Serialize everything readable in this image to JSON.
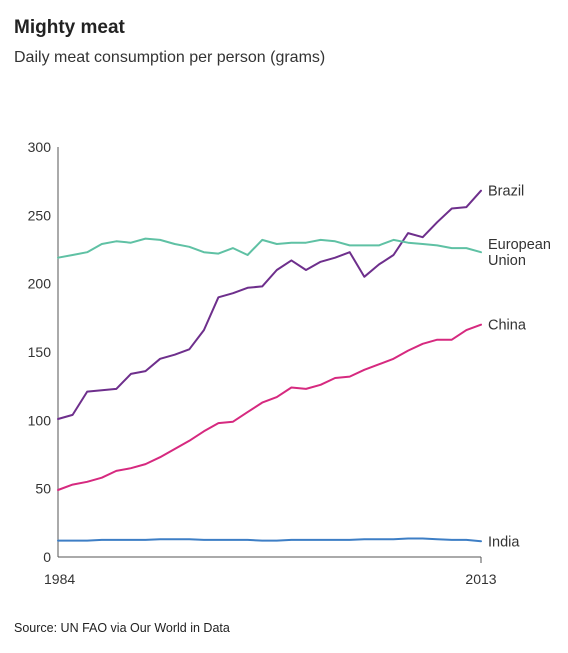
{
  "chart_data": {
    "type": "line",
    "title": "Mighty meat",
    "subtitle": "Daily meat consumption per person (grams)",
    "source": "Source: UN FAO via Our World in Data",
    "x": [
      1984,
      1985,
      1986,
      1987,
      1988,
      1989,
      1990,
      1991,
      1992,
      1993,
      1994,
      1995,
      1996,
      1997,
      1998,
      1999,
      2000,
      2001,
      2002,
      2003,
      2004,
      2005,
      2006,
      2007,
      2008,
      2009,
      2010,
      2011,
      2012,
      2013
    ],
    "x_tick_labels": [
      "1984",
      "2013"
    ],
    "y_ticks": [
      0,
      50,
      100,
      150,
      200,
      250,
      300
    ],
    "y_tick_labels": [
      "0",
      "50",
      "100",
      "150",
      "200",
      "250",
      "300"
    ],
    "ylim": [
      0,
      300
    ],
    "grid": false,
    "series": [
      {
        "name": "Brazil",
        "label_lines": [
          "Brazil"
        ],
        "color": "#6e2f8c",
        "values": [
          101,
          104,
          121,
          122,
          123,
          134,
          136,
          145,
          148,
          152,
          166,
          190,
          193,
          197,
          198,
          210,
          217,
          210,
          216,
          219,
          223,
          205,
          214,
          221,
          237,
          234,
          245,
          255,
          256,
          268
        ]
      },
      {
        "name": "European Union",
        "label_lines": [
          "European",
          "Union"
        ],
        "color": "#5fc1a4",
        "values": [
          219,
          221,
          223,
          229,
          231,
          230,
          233,
          232,
          229,
          227,
          223,
          222,
          226,
          221,
          232,
          229,
          230,
          230,
          232,
          231,
          228,
          228,
          228,
          232,
          230,
          229,
          228,
          226,
          226,
          223
        ]
      },
      {
        "name": "China",
        "label_lines": [
          "China"
        ],
        "color": "#d6297f",
        "values": [
          49,
          53,
          55,
          58,
          63,
          65,
          68,
          73,
          79,
          85,
          92,
          98,
          99,
          106,
          113,
          117,
          124,
          123,
          126,
          131,
          132,
          137,
          141,
          145,
          151,
          156,
          159,
          159,
          166,
          170
        ]
      },
      {
        "name": "India",
        "label_lines": [
          "India"
        ],
        "color": "#3d7ec5",
        "values": [
          12,
          12,
          12,
          12.5,
          12.5,
          12.5,
          12.5,
          13,
          13,
          13,
          12.5,
          12.5,
          12.5,
          12.5,
          12,
          12,
          12.5,
          12.5,
          12.5,
          12.5,
          12.5,
          13,
          13,
          13,
          13.5,
          13.5,
          13,
          12.5,
          12.5,
          11.5
        ]
      }
    ]
  }
}
